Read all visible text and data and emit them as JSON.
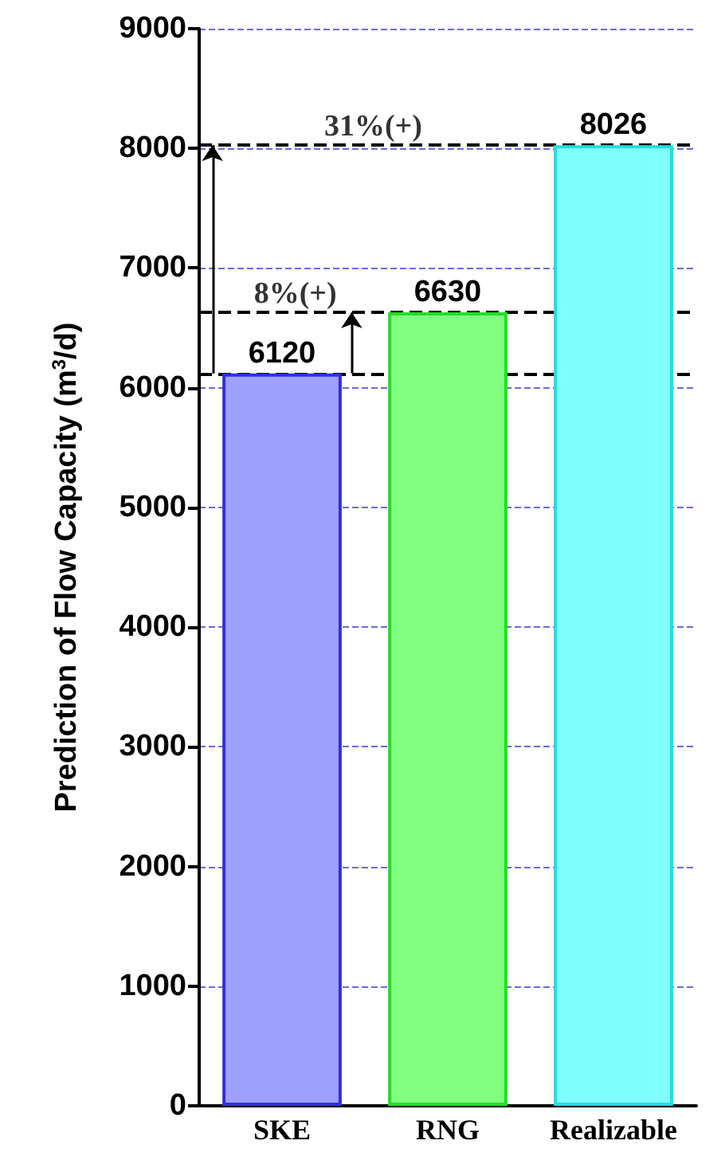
{
  "chart_data": {
    "type": "bar",
    "ylabel": "Prediction of Flow Capacity (m$^{3}$/d)",
    "categories": [
      "SKE",
      "RNG",
      "Realizable"
    ],
    "values": [
      6120,
      6630,
      8026
    ],
    "colors": [
      "#a0a0ff",
      "#80ff80",
      "#80ffff"
    ],
    "ylim": [
      0,
      9000
    ],
    "yticks": [
      0,
      1000,
      2000,
      3000,
      4000,
      5000,
      6000,
      7000,
      8000,
      9000
    ],
    "grid": "y",
    "data_labels": true,
    "ref_lines": [
      {
        "axis": "y",
        "value": 6120,
        "line_style": "dashed",
        "color": "#000000"
      },
      {
        "axis": "y",
        "value": 6630,
        "line_style": "dashed",
        "color": "#000000"
      },
      {
        "axis": "y",
        "value": 8026,
        "line_style": "dashed",
        "color": "#000000"
      }
    ],
    "annotations": [
      {
        "text": "31%(+)",
        "y": 8026
      },
      {
        "text": "8%(+)",
        "y": 6630
      }
    ]
  }
}
